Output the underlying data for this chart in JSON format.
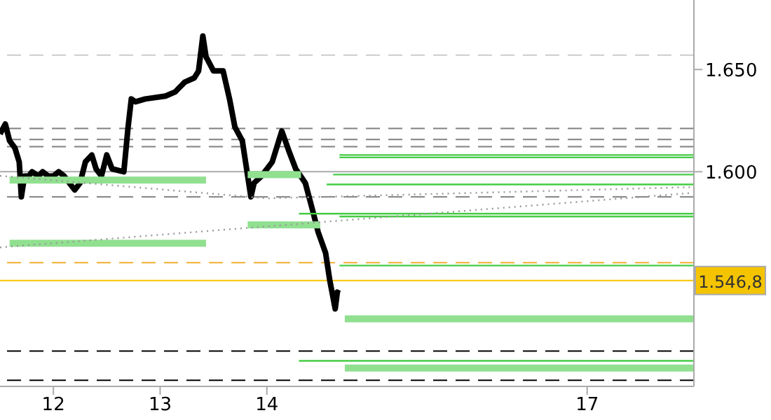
{
  "chart_data": {
    "type": "line",
    "xlim": [
      11.5,
      18.0
    ],
    "xticks": [
      12,
      13,
      14,
      17
    ],
    "ylim": [
      1.495,
      1.684
    ],
    "yticks": [
      {
        "value": 1.6,
        "label": "1.600"
      },
      {
        "value": 1.65,
        "label": "1.650"
      }
    ],
    "grid": false,
    "marker": "none",
    "series": [
      {
        "color": "#000000",
        "line_style": "solid",
        "x": [
          11.5,
          11.55,
          11.59,
          11.64,
          11.68,
          11.7,
          11.73,
          11.77,
          11.8,
          11.86,
          11.9,
          11.95,
          12.0,
          12.05,
          12.1,
          12.2,
          12.25,
          12.3,
          12.36,
          12.4,
          12.45,
          12.5,
          12.55,
          12.66,
          12.7,
          12.73,
          12.77,
          12.86,
          13.05,
          13.14,
          13.23,
          13.32,
          13.36,
          13.4,
          13.43,
          13.5,
          13.59,
          13.65,
          13.7,
          13.77,
          13.85,
          13.88,
          13.95,
          14.05,
          14.14,
          14.21,
          14.27,
          14.36,
          14.43,
          14.48,
          14.55,
          14.59,
          14.64,
          14.66,
          14.68
        ],
        "values": [
          1.6185,
          1.6233,
          1.6151,
          1.6116,
          1.6048,
          1.5877,
          1.5979,
          1.5979,
          1.6,
          1.5979,
          1.6,
          1.5979,
          1.5979,
          1.6,
          1.5979,
          1.5911,
          1.5945,
          1.6048,
          1.6082,
          1.6014,
          1.5979,
          1.6082,
          1.6014,
          1.6,
          1.6219,
          1.6356,
          1.6342,
          1.6356,
          1.637,
          1.639,
          1.6438,
          1.6459,
          1.6493,
          1.6664,
          1.6562,
          1.6493,
          1.6493,
          1.6356,
          1.6219,
          1.6151,
          1.5877,
          1.5945,
          1.5979,
          1.6048,
          1.6199,
          1.6096,
          1.6014,
          1.5945,
          1.5808,
          1.5705,
          1.5603,
          1.5466,
          1.5329,
          1.5411,
          1.5405
        ]
      },
      {
        "color": "#90e090",
        "line_style": "solid",
        "x": [
          11.59,
          13.43
        ],
        "values": [
          1.5959,
          1.5959
        ]
      },
      {
        "color": "#90e090",
        "line_style": "solid",
        "x": [
          11.59,
          13.43
        ],
        "values": [
          1.565,
          1.565
        ]
      },
      {
        "color": "#90e090",
        "line_style": "solid",
        "x": [
          13.82,
          14.32
        ],
        "values": [
          1.5986,
          1.5986
        ]
      },
      {
        "color": "#90e090",
        "line_style": "solid",
        "x": [
          13.82,
          14.5
        ],
        "values": [
          1.574,
          1.574
        ]
      },
      {
        "color": "#90e090",
        "line_style": "solid",
        "x": [
          14.73,
          18.0
        ],
        "values": [
          1.528,
          1.528
        ]
      },
      {
        "color": "#90e090",
        "line_style": "solid",
        "x": [
          14.73,
          18.0
        ],
        "values": [
          1.504,
          1.504
        ]
      },
      {
        "color": "#44cc44",
        "line_style": "solid",
        "x": [
          14.68,
          18.0
        ],
        "values": [
          1.6082,
          1.6082
        ]
      },
      {
        "color": "#44cc44",
        "line_style": "solid",
        "x": [
          14.68,
          18.0
        ],
        "values": [
          1.607,
          1.607
        ]
      },
      {
        "color": "#44cc44",
        "line_style": "solid",
        "x": [
          14.62,
          18.0
        ],
        "values": [
          1.5986,
          1.5986
        ]
      },
      {
        "color": "#44cc44",
        "line_style": "solid",
        "x": [
          14.56,
          18.0
        ],
        "values": [
          1.5938,
          1.5938
        ]
      },
      {
        "color": "#44cc44",
        "line_style": "solid",
        "x": [
          14.3,
          18.0
        ],
        "values": [
          1.5795,
          1.5795
        ]
      },
      {
        "color": "#44cc44",
        "line_style": "solid",
        "x": [
          14.68,
          18.0
        ],
        "values": [
          1.5781,
          1.5781
        ]
      },
      {
        "color": "#44cc44",
        "line_style": "solid",
        "x": [
          14.68,
          18.0
        ],
        "values": [
          1.5541,
          1.5541
        ]
      },
      {
        "color": "#44cc44",
        "line_style": "solid",
        "x": [
          14.3,
          18.0
        ],
        "values": [
          1.5075,
          1.5075
        ]
      },
      {
        "color": "#999999",
        "line_style": "dotted",
        "x": [
          11.5,
          14.0,
          18.0
        ],
        "values": [
          1.598,
          1.587,
          1.5925
        ]
      },
      {
        "color": "#999999",
        "line_style": "dotted",
        "x": [
          11.5,
          18.0
        ],
        "values": [
          1.563,
          1.5897
        ]
      }
    ],
    "ref_lines": [
      {
        "axis": "y",
        "value": 1.657,
        "color": "#cccccc",
        "line_style": "dashed"
      },
      {
        "axis": "y",
        "value": 1.6212,
        "color": "#808080",
        "line_style": "dashed"
      },
      {
        "axis": "y",
        "value": 1.6158,
        "color": "#808080",
        "line_style": "dashed"
      },
      {
        "axis": "y",
        "value": 1.6123,
        "color": "#808080",
        "line_style": "dashed"
      },
      {
        "axis": "y",
        "value": 1.6,
        "color": "#aaaaaa",
        "line_style": "solid"
      },
      {
        "axis": "y",
        "value": 1.5877,
        "color": "#808080",
        "line_style": "dashed"
      },
      {
        "axis": "y",
        "value": 1.5555,
        "color": "#f0b030",
        "line_style": "dashed"
      },
      {
        "axis": "y",
        "value": 1.5468,
        "label": "1.546,8",
        "color": "#f5c400",
        "line_style": "solid"
      },
      {
        "axis": "y",
        "value": 1.5123,
        "color": "#000000",
        "line_style": "dashed"
      },
      {
        "axis": "y",
        "value": 1.498,
        "color": "#000000",
        "line_style": "dashed"
      }
    ]
  }
}
